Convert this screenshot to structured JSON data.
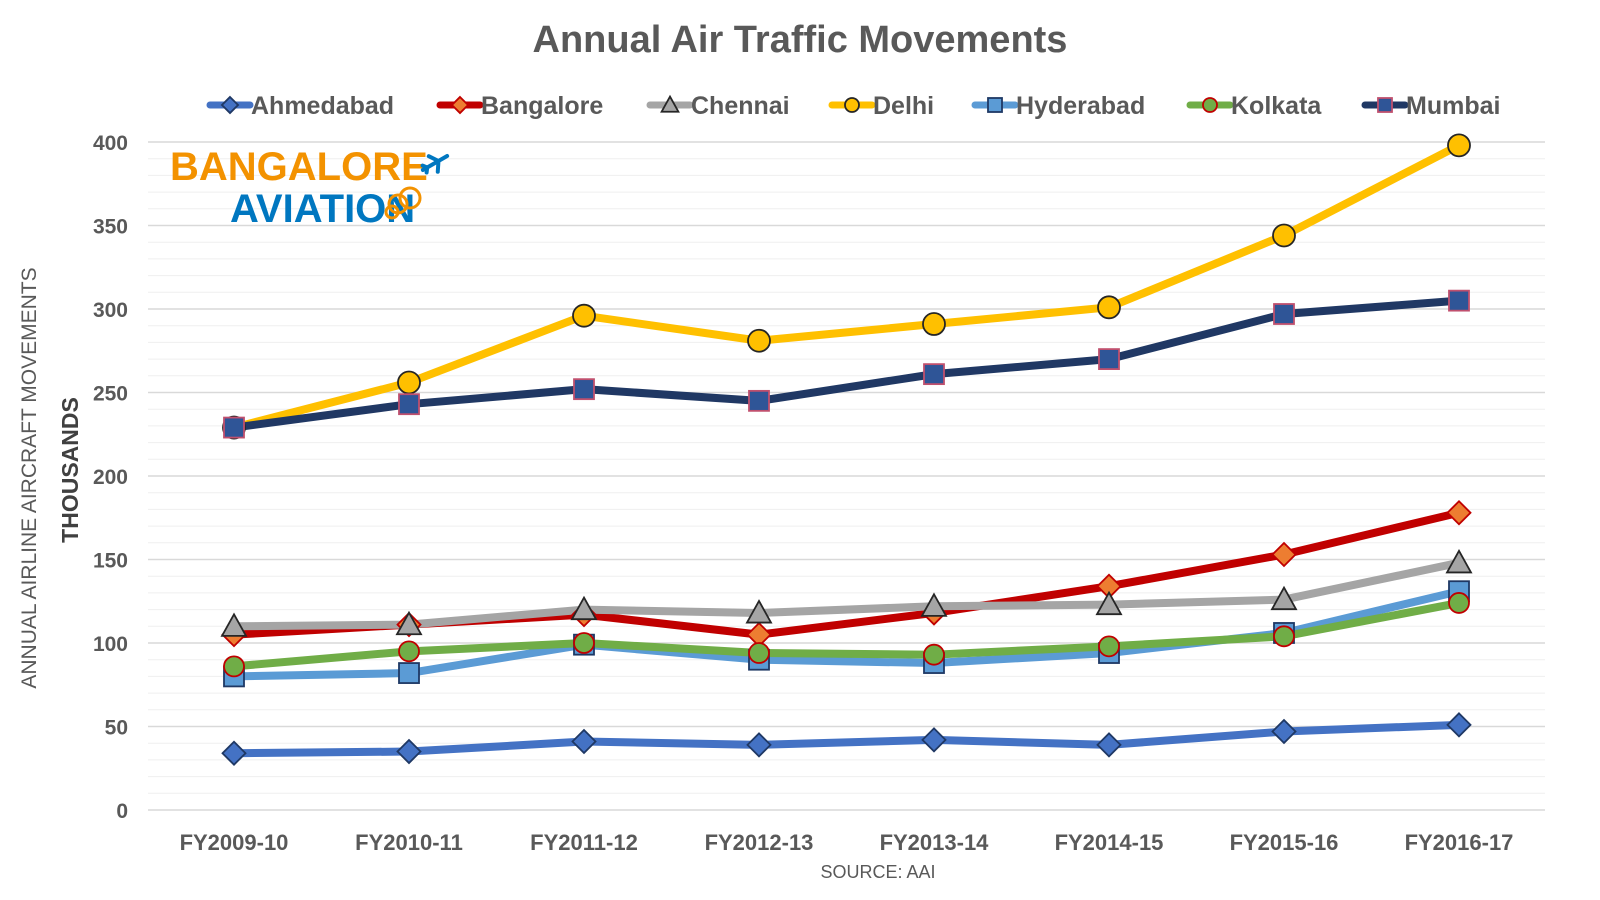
{
  "chart_data": {
    "type": "line",
    "title": "Annual Air Traffic Movements",
    "ylabel": "ANNUAL AIRLINE AIRCRAFT MOVEMENTS",
    "yunits": "THOUSANDS",
    "source": "SOURCE: AAI",
    "ylim": [
      0,
      400
    ],
    "yticks": [
      0,
      50,
      100,
      150,
      200,
      250,
      300,
      350,
      400
    ],
    "grid": true,
    "legend_position": "top",
    "categories": [
      "FY2009-10",
      "FY2010-11",
      "FY2011-12",
      "FY2012-13",
      "FY2013-14",
      "FY2014-15",
      "FY2015-16",
      "FY2016-17"
    ],
    "series": [
      {
        "name": "Ahmedabad",
        "color": "#4472C4",
        "marker": "diamond",
        "marker_fill": "#4472C4",
        "marker_stroke": "#1F3864",
        "values": [
          34,
          35,
          41,
          39,
          42,
          39,
          47,
          51
        ]
      },
      {
        "name": "Bangalore",
        "color": "#C00000",
        "marker": "diamond",
        "marker_fill": "#ED7D31",
        "marker_stroke": "#C00000",
        "values": [
          105,
          111,
          117,
          105,
          118,
          134,
          153,
          178
        ]
      },
      {
        "name": "Chennai",
        "color": "#A5A5A5",
        "marker": "triangle",
        "marker_fill": "#A5A5A5",
        "marker_stroke": "#262626",
        "values": [
          110,
          111,
          120,
          118,
          122,
          123,
          126,
          148
        ]
      },
      {
        "name": "Delhi",
        "color": "#FFC000",
        "marker": "circle",
        "marker_fill": "#FFC000",
        "marker_stroke": "#262626",
        "values": [
          229,
          256,
          296,
          281,
          291,
          301,
          344,
          398
        ]
      },
      {
        "name": "Hyderabad",
        "color": "#5B9BD5",
        "marker": "square",
        "marker_fill": "#5B9BD5",
        "marker_stroke": "#1F3864",
        "values": [
          80,
          82,
          99,
          90,
          88,
          94,
          106,
          131
        ]
      },
      {
        "name": "Kolkata",
        "color": "#70AD47",
        "marker": "circle",
        "marker_fill": "#70AD47",
        "marker_stroke": "#C00000",
        "values": [
          86,
          95,
          100,
          94,
          93,
          98,
          104,
          124
        ]
      },
      {
        "name": "Mumbai",
        "color": "#203864",
        "marker": "square",
        "marker_fill": "#2F5597",
        "marker_stroke": "#C0506E",
        "values": [
          229,
          243,
          252,
          245,
          261,
          270,
          297,
          305
        ]
      }
    ]
  },
  "logo": {
    "line1": "BANGALORE",
    "line2": "AVIATION",
    "color_orange": "#F39200",
    "color_blue": "#0077C0"
  }
}
